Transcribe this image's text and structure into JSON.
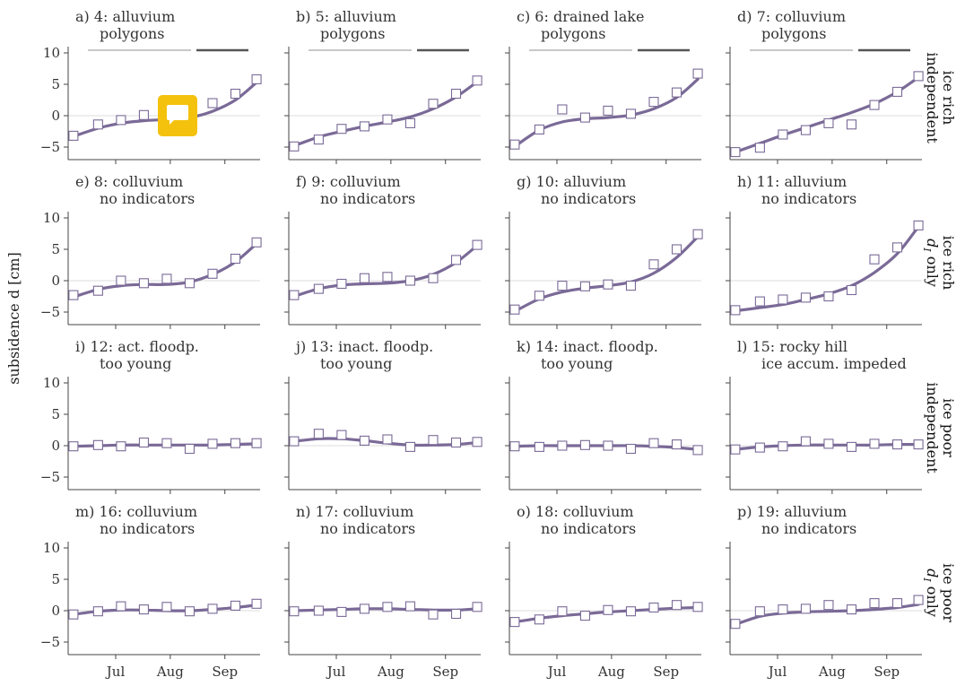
{
  "figure": {
    "ylabel": "subsidence d [cm]",
    "colors": {
      "fit": "#7a6a97",
      "marker": "#7a6a97",
      "bar_light": "#b5b5b5",
      "bar_dark": "#555555",
      "badge": "#f4c20d"
    },
    "row_labels": [
      {
        "line1": "ice rich",
        "line2": "independent"
      },
      {
        "line1": "ice rich",
        "line2": "d_I only"
      },
      {
        "line1": "ice poor",
        "line2": "independent"
      },
      {
        "line1": "ice poor",
        "line2": "d_I only"
      }
    ],
    "icons": [
      "chat-bubble-icon"
    ]
  },
  "chart_data": {
    "type": "scatter",
    "x_axis": {
      "tick_labels": [
        "Jul",
        "Aug",
        "Sep"
      ],
      "tick_days": [
        182,
        213,
        244
      ],
      "range_days": [
        155,
        264
      ]
    },
    "y_axis": {
      "ticks": [
        10,
        5,
        0,
        -5
      ],
      "ylim": [
        -7,
        11
      ]
    },
    "panels": [
      {
        "letter": "a)",
        "line1": "4: alluvium",
        "line2": "polygons",
        "period_bars": true,
        "x": [
          158,
          172,
          185,
          198,
          211,
          224,
          237,
          250,
          262
        ],
        "obs": [
          -3.2,
          -1.4,
          -0.7,
          0.1,
          -0.4,
          -0.3,
          2.0,
          3.5,
          5.8
        ],
        "fit": [
          -3.3,
          -2.0,
          -1.2,
          -0.8,
          -0.6,
          -0.3,
          0.7,
          2.5,
          5.3
        ]
      },
      {
        "letter": "b)",
        "line1": "5: alluvium",
        "line2": "polygons",
        "period_bars": true,
        "x": [
          158,
          172,
          185,
          198,
          211,
          224,
          237,
          250,
          262
        ],
        "obs": [
          -4.9,
          -3.8,
          -2.1,
          -1.7,
          -0.6,
          -1.2,
          1.9,
          3.5,
          5.6
        ],
        "fit": [
          -4.8,
          -3.4,
          -2.5,
          -1.7,
          -1.0,
          -0.2,
          1.1,
          3.0,
          5.4
        ]
      },
      {
        "letter": "c)",
        "line1": "6: drained lake",
        "line2": "polygons",
        "period_bars": true,
        "x": [
          158,
          172,
          185,
          198,
          211,
          224,
          237,
          250,
          262
        ],
        "obs": [
          -4.6,
          -2.2,
          1.0,
          -0.3,
          0.8,
          0.3,
          2.2,
          3.7,
          6.7
        ],
        "fit": [
          -4.9,
          -2.3,
          -1.0,
          -0.5,
          -0.3,
          0.1,
          1.1,
          2.9,
          5.8
        ]
      },
      {
        "letter": "d)",
        "line1": "7: colluvium",
        "line2": "polygons",
        "period_bars": true,
        "x": [
          158,
          172,
          185,
          198,
          211,
          224,
          237,
          250,
          262
        ],
        "obs": [
          -5.8,
          -5.1,
          -3.0,
          -2.3,
          -1.2,
          -1.4,
          1.7,
          3.8,
          6.3
        ],
        "fit": [
          -5.8,
          -4.4,
          -3.1,
          -1.9,
          -0.7,
          0.5,
          1.9,
          3.8,
          6.1
        ]
      },
      {
        "letter": "e)",
        "line1": "8: colluvium",
        "line2": "no indicators",
        "period_bars": false,
        "x": [
          158,
          172,
          185,
          198,
          211,
          224,
          237,
          250,
          262
        ],
        "obs": [
          -2.3,
          -1.6,
          0.0,
          -0.4,
          0.3,
          -0.4,
          1.1,
          3.5,
          6.1
        ],
        "fit": [
          -2.6,
          -1.4,
          -0.8,
          -0.6,
          -0.6,
          -0.2,
          1.0,
          3.0,
          5.9
        ]
      },
      {
        "letter": "f)",
        "line1": "9: colluvium",
        "line2": "no indicators",
        "period_bars": false,
        "x": [
          158,
          172,
          185,
          198,
          211,
          224,
          237,
          250,
          262
        ],
        "obs": [
          -2.3,
          -1.3,
          -0.5,
          0.4,
          0.6,
          0.0,
          0.4,
          3.3,
          5.7
        ],
        "fit": [
          -2.5,
          -1.3,
          -0.7,
          -0.5,
          -0.4,
          0.0,
          1.0,
          2.9,
          5.6
        ]
      },
      {
        "letter": "g)",
        "line1": "10: alluvium",
        "line2": "no indicators",
        "period_bars": false,
        "x": [
          158,
          172,
          185,
          198,
          211,
          224,
          237,
          250,
          262
        ],
        "obs": [
          -4.6,
          -2.4,
          -0.8,
          -0.9,
          -0.6,
          -0.8,
          2.6,
          5.0,
          7.4
        ],
        "fit": [
          -4.9,
          -2.9,
          -1.8,
          -1.2,
          -0.8,
          -0.2,
          1.2,
          3.7,
          7.0
        ]
      },
      {
        "letter": "h)",
        "line1": "11: alluvium",
        "line2": "no indicators",
        "period_bars": false,
        "x": [
          158,
          172,
          185,
          198,
          211,
          224,
          237,
          250,
          262
        ],
        "obs": [
          -4.7,
          -3.3,
          -3.0,
          -2.7,
          -2.5,
          -1.5,
          3.4,
          5.3,
          8.8
        ],
        "fit": [
          -4.8,
          -4.3,
          -3.8,
          -3.0,
          -2.1,
          -0.8,
          1.3,
          4.3,
          8.6
        ]
      },
      {
        "letter": "i)",
        "line1": "12: act. floodp.",
        "line2": "too young",
        "period_bars": false,
        "x": [
          158,
          172,
          185,
          198,
          211,
          224,
          237,
          250,
          262
        ],
        "obs": [
          -0.1,
          0.1,
          -0.1,
          0.5,
          0.4,
          -0.5,
          0.3,
          0.4,
          0.4
        ],
        "fit": [
          -0.1,
          0.0,
          0.1,
          0.1,
          0.1,
          0.1,
          0.1,
          0.2,
          0.3
        ]
      },
      {
        "letter": "j)",
        "line1": "13: inact. floodp.",
        "line2": "too young",
        "period_bars": false,
        "x": [
          158,
          172,
          185,
          198,
          211,
          224,
          237,
          250,
          262
        ],
        "obs": [
          0.7,
          1.9,
          1.7,
          0.8,
          1.0,
          -0.2,
          0.9,
          0.5,
          0.6
        ],
        "fit": [
          0.7,
          1.1,
          1.1,
          0.8,
          0.4,
          0.1,
          0.1,
          0.2,
          0.5
        ]
      },
      {
        "letter": "k)",
        "line1": "14: inact. floodp.",
        "line2": "too young",
        "period_bars": false,
        "x": [
          158,
          172,
          185,
          198,
          211,
          224,
          237,
          250,
          262
        ],
        "obs": [
          -0.1,
          -0.2,
          0.0,
          0.1,
          0.0,
          -0.5,
          0.4,
          0.2,
          -0.7
        ],
        "fit": [
          -0.1,
          0.0,
          0.0,
          0.0,
          0.0,
          0.0,
          -0.1,
          -0.3,
          -0.6
        ]
      },
      {
        "letter": "l)",
        "line1": "15: rocky hill",
        "line2": "ice accum. impeded",
        "period_bars": false,
        "x": [
          158,
          172,
          185,
          198,
          211,
          224,
          237,
          250,
          262
        ],
        "obs": [
          -0.6,
          -0.3,
          -0.1,
          0.7,
          0.3,
          -0.2,
          0.3,
          0.2,
          0.2
        ],
        "fit": [
          -0.6,
          -0.2,
          0.0,
          0.1,
          0.1,
          0.1,
          0.1,
          0.2,
          0.2
        ]
      },
      {
        "letter": "m)",
        "line1": "16: colluvium",
        "line2": "no indicators",
        "period_bars": false,
        "x": [
          158,
          172,
          185,
          198,
          211,
          224,
          237,
          250,
          262
        ],
        "obs": [
          -0.6,
          -0.1,
          0.7,
          0.2,
          0.6,
          -0.1,
          0.3,
          0.8,
          1.1
        ],
        "fit": [
          -0.6,
          -0.1,
          0.1,
          0.1,
          0.0,
          0.0,
          0.2,
          0.5,
          0.9
        ]
      },
      {
        "letter": "n)",
        "line1": "17: colluvium",
        "line2": "no indicators",
        "period_bars": false,
        "x": [
          158,
          172,
          185,
          198,
          211,
          224,
          237,
          250,
          262
        ],
        "obs": [
          -0.1,
          0.0,
          -0.2,
          0.3,
          0.6,
          0.7,
          -0.6,
          -0.5,
          0.6
        ],
        "fit": [
          0.0,
          0.1,
          0.2,
          0.3,
          0.3,
          0.2,
          0.1,
          0.1,
          0.3
        ]
      },
      {
        "letter": "o)",
        "line1": "18: colluvium",
        "line2": "no indicators",
        "period_bars": false,
        "x": [
          158,
          172,
          185,
          198,
          211,
          224,
          237,
          250,
          262
        ],
        "obs": [
          -1.8,
          -1.4,
          -0.1,
          -0.8,
          0.1,
          -0.1,
          0.5,
          0.9,
          0.6
        ],
        "fit": [
          -1.8,
          -1.2,
          -0.8,
          -0.5,
          -0.2,
          0.0,
          0.2,
          0.4,
          0.5
        ]
      },
      {
        "letter": "p)",
        "line1": "19: alluvium",
        "line2": "no indicators",
        "period_bars": false,
        "x": [
          158,
          172,
          185,
          198,
          211,
          224,
          237,
          250,
          262
        ],
        "obs": [
          -2.1,
          -0.1,
          0.2,
          0.3,
          0.9,
          0.2,
          1.2,
          1.2,
          1.7
        ],
        "fit": [
          -2.2,
          -0.9,
          -0.4,
          -0.2,
          -0.1,
          0.0,
          0.2,
          0.5,
          1.0
        ]
      }
    ]
  }
}
